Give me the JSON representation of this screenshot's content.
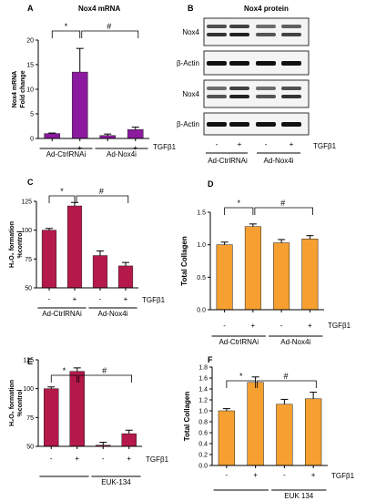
{
  "panels": {
    "A": {
      "letter": "A",
      "title": "Nox4 mRNA",
      "ylabel_lines": [
        "Nox4 mRNA",
        "Fold change"
      ]
    },
    "B": {
      "letter": "B",
      "title": "Nox4 protein"
    },
    "C": {
      "letter": "C"
    },
    "D": {
      "letter": "D"
    },
    "E": {
      "letter": "E"
    },
    "F": {
      "letter": "F"
    }
  },
  "blot": {
    "rows": [
      "Nox4",
      "β-Actin",
      "Nox4",
      "β-Actin"
    ],
    "ticks": [
      "-",
      "+",
      "-",
      "+"
    ],
    "treatment": "TGFβ1",
    "groups": [
      "Ad-CtrlRNAi",
      "Ad-Nox4i"
    ]
  },
  "chart_data": [
    {
      "panel": "A",
      "type": "bar",
      "color": "#8b1a9e",
      "ylabel": "Nox4 mRNA Fold change",
      "ylim": [
        0,
        20
      ],
      "yticks": [
        0,
        5,
        10,
        15,
        20
      ],
      "categories": [
        "-",
        "+",
        "-",
        "+"
      ],
      "values": [
        1.0,
        13.5,
        0.6,
        1.8
      ],
      "errors": [
        0.1,
        4.8,
        0.3,
        0.5
      ],
      "treatment": "TGFβ1",
      "groups": [
        "Ad-CtrlRNAi",
        "Ad-Nox4i"
      ],
      "significance": [
        "*",
        "#"
      ]
    },
    {
      "panel": "C",
      "type": "bar",
      "color": "#b5194a",
      "ylabel": "H₂O₂ formation %control",
      "ylim": [
        50,
        125
      ],
      "yticks": [
        50,
        75,
        100,
        125
      ],
      "categories": [
        "-",
        "+",
        "-",
        "+"
      ],
      "values": [
        100,
        121,
        78,
        69
      ],
      "errors": [
        1.5,
        3,
        4,
        3
      ],
      "treatment": "TGFβ1",
      "groups": [
        "Ad-CtrlRNAi",
        "Ad-Nox4i"
      ],
      "significance": [
        "*",
        "#"
      ]
    },
    {
      "panel": "D",
      "type": "bar",
      "color": "#f5a030",
      "ylabel": "Total Collagen",
      "ylim": [
        0,
        1.5
      ],
      "yticks": [
        0.0,
        0.5,
        1.0,
        1.5
      ],
      "categories": [
        "-",
        "+",
        "-",
        "+"
      ],
      "values": [
        1.0,
        1.28,
        1.03,
        1.09
      ],
      "errors": [
        0.04,
        0.04,
        0.05,
        0.05
      ],
      "treatment": "TGFβ1",
      "groups": [
        "Ad-CtrlRNAi",
        "Ad-Nox4i"
      ],
      "significance": [
        "*",
        "#"
      ]
    },
    {
      "panel": "E",
      "type": "bar",
      "color": "#b5194a",
      "ylabel": "H₂O₂ formation %control",
      "ylim": [
        50,
        125
      ],
      "yticks": [
        50,
        75,
        100,
        125
      ],
      "categories": [
        "-",
        "+",
        "-",
        "+"
      ],
      "values": [
        100,
        115,
        51,
        61
      ],
      "errors": [
        1.5,
        3,
        2.5,
        3
      ],
      "treatment": "TGFβ1",
      "groups": [
        "",
        "EUK-134"
      ],
      "significance": [
        "*",
        "#"
      ]
    },
    {
      "panel": "F",
      "type": "bar",
      "color": "#f5a030",
      "ylabel": "Total Collagen",
      "ylim": [
        0,
        1.8
      ],
      "yticks": [
        0.0,
        0.2,
        0.4,
        0.6,
        0.8,
        1.0,
        1.2,
        1.4,
        1.6,
        1.8
      ],
      "categories": [
        "-",
        "+",
        "-",
        "+"
      ],
      "values": [
        1.0,
        1.52,
        1.12,
        1.22
      ],
      "errors": [
        0.04,
        0.1,
        0.09,
        0.12
      ],
      "treatment": "TGFβ1",
      "groups": [
        "",
        "EUK 134"
      ],
      "significance": [
        "*",
        "#"
      ]
    }
  ]
}
